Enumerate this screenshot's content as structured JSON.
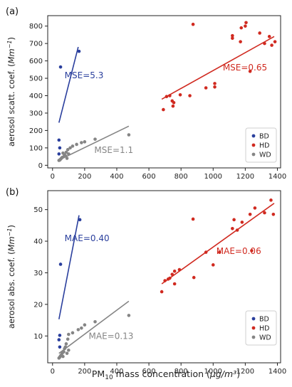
{
  "figure": {
    "shared_xlabel_prefix": "PM",
    "shared_xlabel_sub": "10",
    "shared_xlabel_suffix": " mass concentration (",
    "shared_xlabel_unit": "μg/m³",
    "shared_xlabel_close": ")"
  },
  "colors": {
    "BD": "#2a3f9d",
    "HD": "#d02a20",
    "WD": "#858585"
  },
  "chart_data": [
    {
      "type": "scatter",
      "panel_label": "(a)",
      "ylabel_prefix": "aerosol scatt. coef. (",
      "ylabel_unit": "Mm",
      "ylabel_exp": "−1",
      "ylabel_close": ")",
      "xlim": [
        -30,
        1420
      ],
      "ylim": [
        -15,
        860
      ],
      "xticks": [
        0,
        200,
        400,
        600,
        800,
        1000,
        1200,
        1400
      ],
      "yticks": [
        0,
        100,
        200,
        300,
        400,
        500,
        600,
        700,
        800
      ],
      "legend_position": "lower-right",
      "series": [
        {
          "name": "BD",
          "points": [
            [
              50,
              565
            ],
            [
              165,
              655
            ],
            [
              40,
              145
            ],
            [
              45,
              100
            ],
            [
              40,
              65
            ]
          ],
          "fit": [
            [
              40,
              245
            ],
            [
              160,
              680
            ]
          ]
        },
        {
          "name": "HD",
          "points": [
            [
              875,
              810
            ],
            [
              1205,
              820
            ],
            [
              1200,
              800
            ],
            [
              1175,
              790
            ],
            [
              1120,
              745
            ],
            [
              1120,
              730
            ],
            [
              1290,
              760
            ],
            [
              1350,
              740
            ],
            [
              1170,
              710
            ],
            [
              1320,
              700
            ],
            [
              1365,
              690
            ],
            [
              1385,
              710
            ],
            [
              1230,
              540
            ],
            [
              1010,
              470
            ],
            [
              955,
              445
            ],
            [
              855,
              400
            ],
            [
              710,
              395
            ],
            [
              730,
              400
            ],
            [
              745,
              370
            ],
            [
              755,
              360
            ],
            [
              750,
              340
            ],
            [
              690,
              320
            ],
            [
              795,
              405
            ],
            [
              1010,
              450
            ]
          ],
          "fit": [
            [
              680,
              380
            ],
            [
              1380,
              740
            ]
          ]
        },
        {
          "name": "WD",
          "points": [
            [
              475,
              175
            ],
            [
              265,
              150
            ],
            [
              200,
              135
            ],
            [
              180,
              130
            ],
            [
              150,
              120
            ],
            [
              125,
              110
            ],
            [
              110,
              100
            ],
            [
              95,
              90
            ],
            [
              85,
              75
            ],
            [
              75,
              60
            ],
            [
              70,
              50
            ],
            [
              60,
              45
            ],
            [
              55,
              40
            ],
            [
              50,
              35
            ],
            [
              45,
              30
            ],
            [
              40,
              28
            ],
            [
              65,
              70
            ],
            [
              80,
              55
            ],
            [
              90,
              40
            ],
            [
              100,
              65
            ]
          ],
          "fit": [
            [
              40,
              30
            ],
            [
              475,
              225
            ]
          ]
        }
      ],
      "annotations": [
        {
          "text": "MSE=5.3",
          "series": "BD",
          "x": 75,
          "y": 500
        },
        {
          "text": "MSE=0.65",
          "series": "HD",
          "x": 1060,
          "y": 545
        },
        {
          "text": "MSE=1.1",
          "series": "WD",
          "x": 260,
          "y": 70
        }
      ]
    },
    {
      "type": "scatter",
      "panel_label": "(b)",
      "ylabel_prefix": "aerosol abs. coef. (",
      "ylabel_unit": "Mm",
      "ylabel_exp": "−1",
      "ylabel_close": ")",
      "xlim": [
        -30,
        1420
      ],
      "ylim": [
        1.5,
        56
      ],
      "xticks": [
        0,
        200,
        400,
        600,
        800,
        1000,
        1200,
        1400
      ],
      "yticks": [
        10,
        20,
        30,
        40,
        50
      ],
      "legend_position": "lower-right",
      "series": [
        {
          "name": "BD",
          "points": [
            [
              50,
              32.7
            ],
            [
              170,
              46.8
            ],
            [
              45,
              10.2
            ],
            [
              40,
              8.8
            ],
            [
              45,
              6.5
            ]
          ],
          "fit": [
            [
              40,
              15.3
            ],
            [
              165,
              48.2
            ]
          ]
        },
        {
          "name": "HD",
          "points": [
            [
              1360,
              53
            ],
            [
              1375,
              48.5
            ],
            [
              1320,
              49
            ],
            [
              1260,
              50.5
            ],
            [
              1230,
              48.5
            ],
            [
              1180,
              46
            ],
            [
              1130,
              46.8
            ],
            [
              1120,
              44
            ],
            [
              1150,
              43.5
            ],
            [
              1240,
              37
            ],
            [
              1040,
              36.5
            ],
            [
              875,
              47
            ],
            [
              955,
              36.5
            ],
            [
              1000,
              32.5
            ],
            [
              790,
              31
            ],
            [
              760,
              30.5
            ],
            [
              745,
              29.5
            ],
            [
              720,
              28
            ],
            [
              700,
              27.5
            ],
            [
              680,
              24
            ],
            [
              730,
              28.3
            ],
            [
              880,
              28.5
            ],
            [
              760,
              26.5
            ]
          ],
          "fit": [
            [
              680,
              26.5
            ],
            [
              1380,
              52
            ]
          ]
        },
        {
          "name": "WD",
          "points": [
            [
              475,
              16.5
            ],
            [
              265,
              14.5
            ],
            [
              200,
              13.5
            ],
            [
              180,
              12.5
            ],
            [
              160,
              12
            ],
            [
              125,
              11
            ],
            [
              100,
              10.5
            ],
            [
              95,
              9
            ],
            [
              85,
              7.5
            ],
            [
              75,
              6
            ],
            [
              70,
              5
            ],
            [
              60,
              4.5
            ],
            [
              55,
              4
            ],
            [
              50,
              3.7
            ],
            [
              45,
              3.3
            ],
            [
              40,
              3
            ],
            [
              80,
              6.5
            ],
            [
              90,
              4.5
            ],
            [
              100,
              5.5
            ],
            [
              65,
              3.5
            ]
          ],
          "fit": [
            [
              40,
              4.5
            ],
            [
              475,
              21
            ]
          ]
        }
      ],
      "annotations": [
        {
          "text": "MAE=0.40",
          "series": "BD",
          "x": 75,
          "y": 40
        },
        {
          "text": "MAE=0.06",
          "series": "HD",
          "x": 1020,
          "y": 36
        },
        {
          "text": "MAE=0.13",
          "series": "WD",
          "x": 225,
          "y": 9
        }
      ]
    }
  ]
}
